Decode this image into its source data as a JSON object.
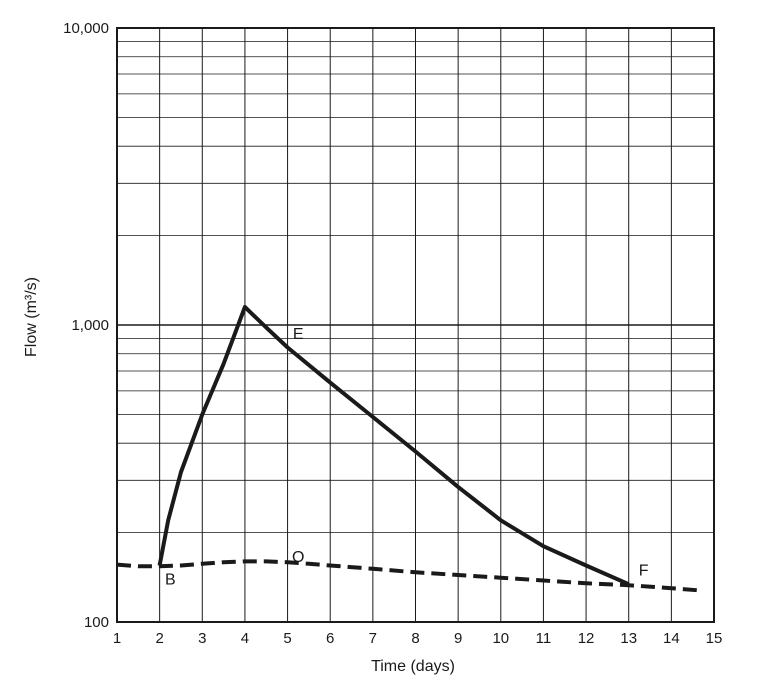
{
  "chart_data": {
    "type": "line",
    "xlabel": "Time (days)",
    "ylabel": "Flow (m³/s)",
    "yscale": "log",
    "xlim": [
      1,
      15
    ],
    "ylim": [
      100,
      10000
    ],
    "grid": true,
    "x_ticks": [
      1,
      2,
      3,
      4,
      5,
      6,
      7,
      8,
      9,
      10,
      11,
      12,
      13,
      14,
      15
    ],
    "y_tick_labels": [
      {
        "value": 100,
        "label": "100"
      },
      {
        "value": 1000,
        "label": "1,000"
      },
      {
        "value": 10000,
        "label": "10,000"
      }
    ],
    "series": [
      {
        "style": "solid",
        "color": "#1a1a1a",
        "x": [
          2.0,
          2.2,
          2.5,
          3.0,
          3.5,
          4.0,
          4.5,
          5.0,
          6.0,
          7.0,
          8.0,
          9.0,
          10.0,
          11.0,
          12.0,
          13.0
        ],
        "y": [
          155,
          220,
          320,
          500,
          740,
          1150,
          980,
          840,
          640,
          490,
          375,
          285,
          220,
          180,
          155,
          134
        ]
      },
      {
        "style": "dashed",
        "color": "#1a1a1a",
        "x": [
          1.0,
          1.5,
          2.0,
          2.5,
          3.0,
          3.5,
          4.0,
          4.5,
          5.0,
          5.5,
          6.0,
          7.0,
          8.0,
          9.0,
          10.0,
          11.0,
          12.0,
          13.0,
          14.0,
          14.6
        ],
        "y": [
          156,
          154,
          154,
          155,
          157,
          159,
          160,
          160,
          159,
          157,
          155,
          151,
          147,
          144,
          141,
          138,
          135,
          133,
          130,
          128
        ]
      }
    ],
    "annotations": [
      {
        "text": "B",
        "x": 2.25,
        "y": 140
      },
      {
        "text": "E",
        "x": 5.25,
        "y": 940
      },
      {
        "text": "O",
        "x": 5.25,
        "y": 167
      },
      {
        "text": "F",
        "x": 13.35,
        "y": 150
      }
    ]
  }
}
